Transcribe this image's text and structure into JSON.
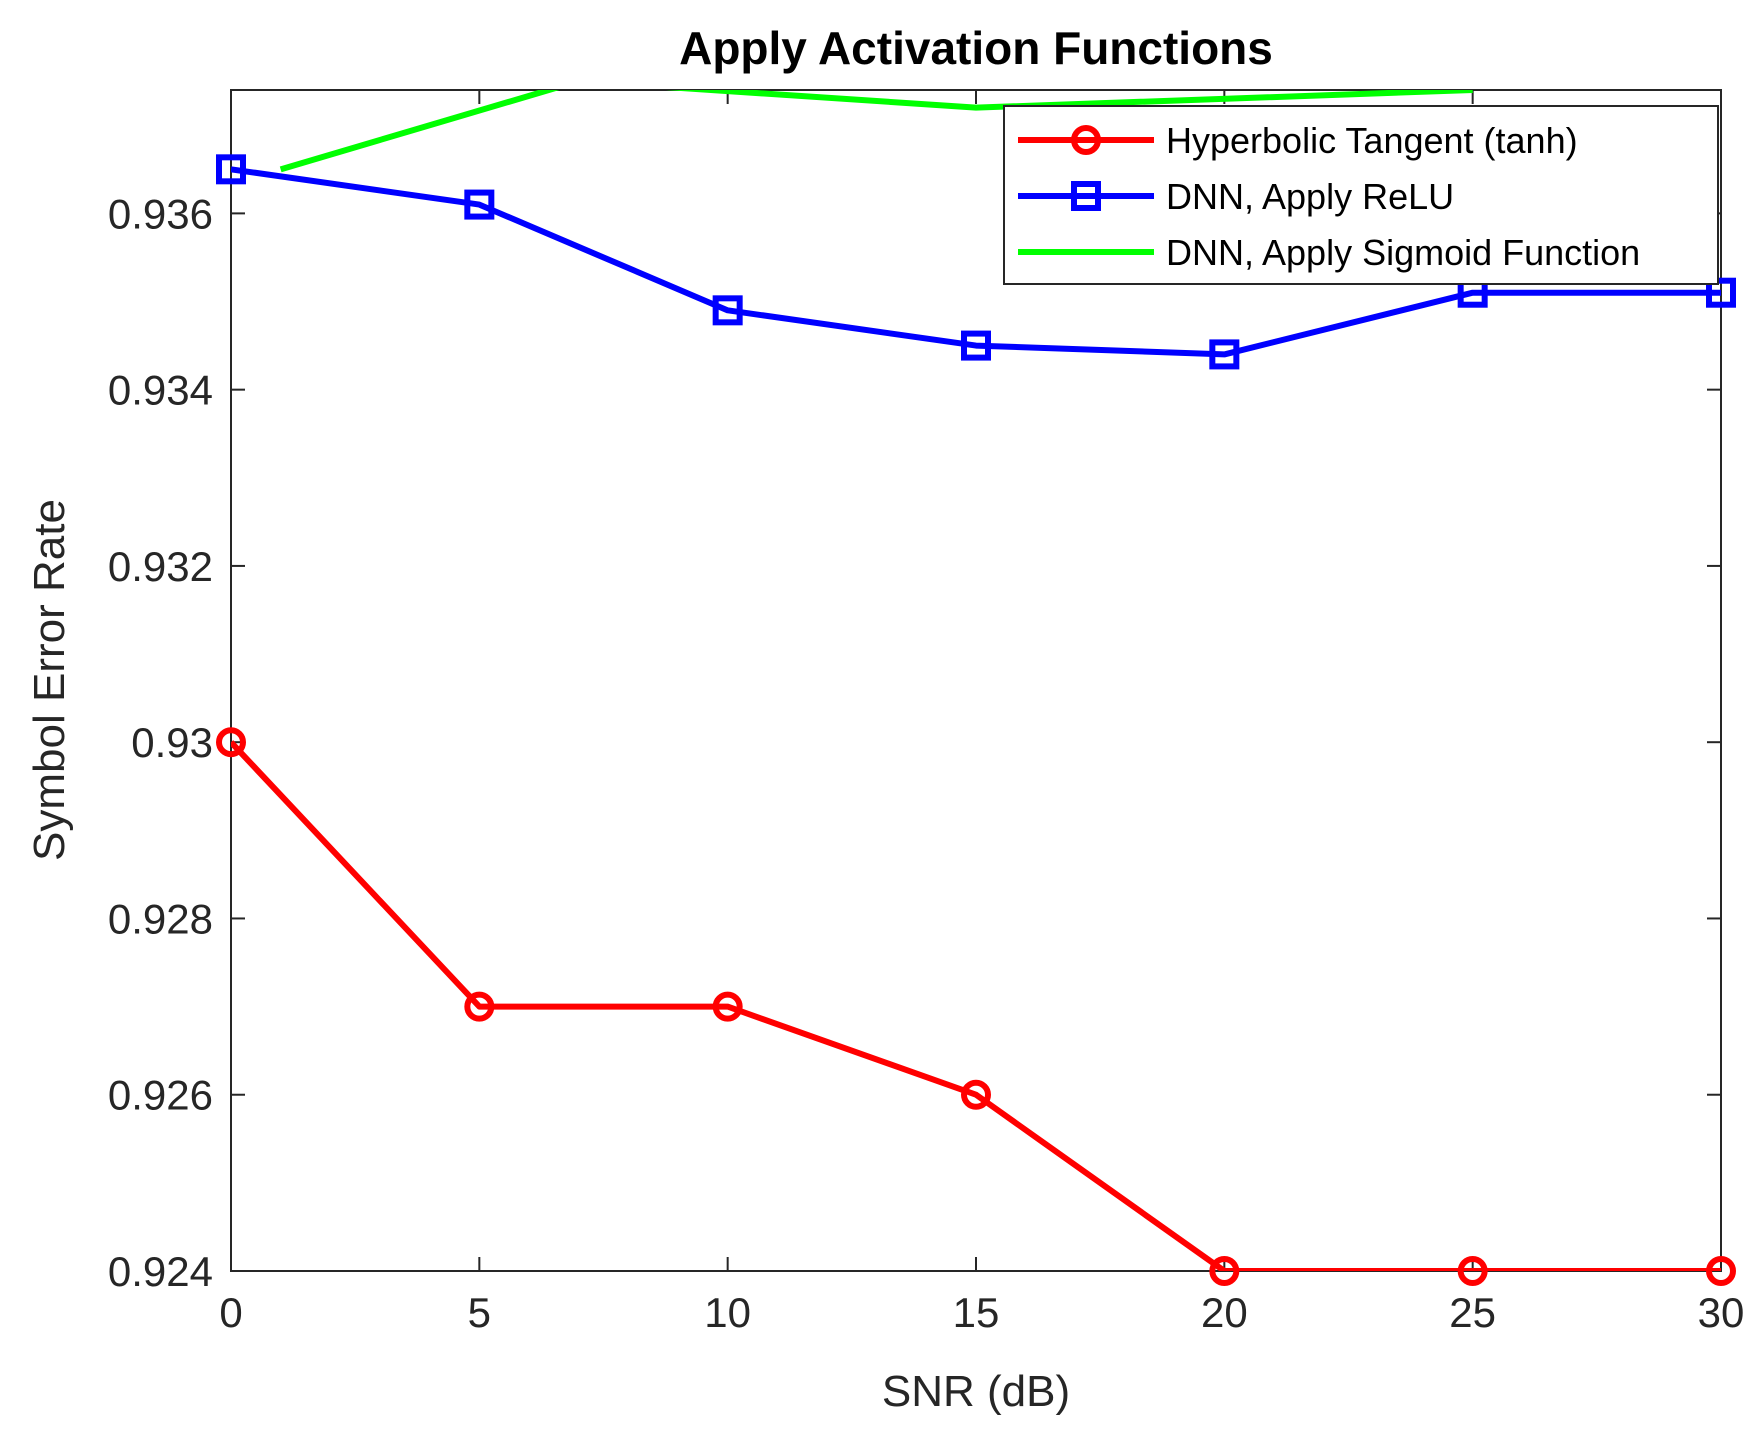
{
  "chart_data": {
    "type": "line",
    "title": "Apply Activation Functions",
    "xlabel": "SNR (dB)",
    "ylabel": "Symbol Error Rate",
    "xlim": [
      0,
      30
    ],
    "ylim": [
      0.924,
      0.9374
    ],
    "xticks": [
      0,
      5,
      10,
      15,
      20,
      25,
      30
    ],
    "xtick_labels": [
      "0",
      "5",
      "10",
      "15",
      "20",
      "25",
      "30"
    ],
    "yticks": [
      0.924,
      0.926,
      0.928,
      0.93,
      0.932,
      0.934,
      0.936
    ],
    "ytick_labels": [
      "0.924",
      "0.926",
      "0.928",
      "0.93",
      "0.932",
      "0.934",
      "0.936"
    ],
    "grid": false,
    "legend_position": "top-right",
    "series": [
      {
        "name": "Hyperbolic Tangent (tanh)",
        "color": "#ff0000",
        "marker": "circle",
        "x": [
          0,
          5,
          10,
          15,
          20,
          25,
          30
        ],
        "y": [
          0.93,
          0.927,
          0.927,
          0.926,
          0.924,
          0.924,
          0.924
        ]
      },
      {
        "name": "DNN, Apply ReLU",
        "color": "#0000ff",
        "marker": "square",
        "x": [
          0,
          5,
          10,
          15,
          20,
          25,
          30
        ],
        "y": [
          0.9365,
          0.9361,
          0.9349,
          0.9345,
          0.9344,
          0.9351,
          0.9351
        ]
      },
      {
        "name": "DNN, Apply Sigmoid Function",
        "color": "#00ff00",
        "marker": "none",
        "x": [
          1,
          7,
          15,
          25
        ],
        "y": [
          0.9365,
          0.9375,
          0.9372,
          0.9374
        ]
      }
    ]
  }
}
